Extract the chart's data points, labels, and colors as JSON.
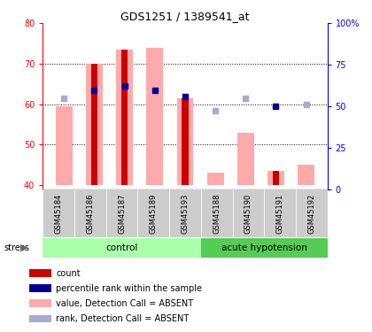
{
  "title": "GDS1251 / 1389541_at",
  "samples": [
    "GSM45184",
    "GSM45186",
    "GSM45187",
    "GSM45189",
    "GSM45193",
    "GSM45188",
    "GSM45190",
    "GSM45191",
    "GSM45192"
  ],
  "groups": {
    "control": [
      0,
      1,
      2,
      3,
      4
    ],
    "acute hypotension": [
      5,
      6,
      7,
      8
    ]
  },
  "ylim_left": [
    39,
    80
  ],
  "ylim_right": [
    0,
    100
  ],
  "yticks_left": [
    40,
    50,
    60,
    70,
    80
  ],
  "yticks_right": [
    0,
    25,
    50,
    75,
    100
  ],
  "base": 40,
  "value_absent": [
    59.5,
    70.0,
    73.5,
    74.0,
    61.5,
    43.0,
    53.0,
    43.5,
    45.0
  ],
  "rank_absent": [
    61.5,
    null,
    null,
    63.5,
    null,
    58.5,
    61.5,
    null,
    60.0
  ],
  "count_bar": [
    null,
    70.0,
    73.5,
    null,
    61.5,
    null,
    null,
    43.5,
    null
  ],
  "percentile_rank": [
    null,
    63.5,
    64.5,
    63.5,
    62.0,
    null,
    null,
    59.5,
    null
  ],
  "count_color": "#cc0000",
  "pct_rank_color": "#000099",
  "value_absent_color": "#ffaaaa",
  "rank_absent_color": "#aaaacc",
  "sample_label_bg": "#cccccc",
  "group_control_color": "#aaffaa",
  "group_hypotension_color": "#55cc55",
  "legend_items": [
    "count",
    "percentile rank within the sample",
    "value, Detection Call = ABSENT",
    "rank, Detection Call = ABSENT"
  ],
  "legend_colors": [
    "#cc0000",
    "#000099",
    "#ffaaaa",
    "#aaaacc"
  ]
}
